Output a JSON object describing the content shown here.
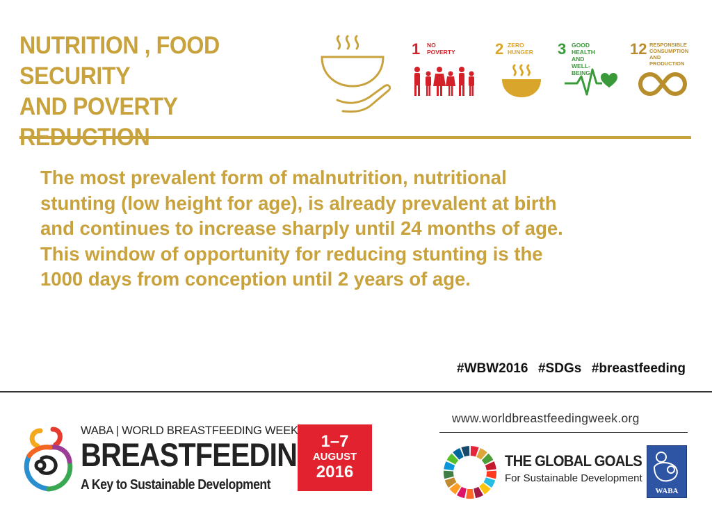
{
  "header": {
    "title_line1": "NUTRITION , FOOD SECURITY",
    "title_line2": "AND POVERTY REDUCTION"
  },
  "sdgs": [
    {
      "number": "1",
      "label_line1": "NO",
      "label_line2": "POVERTY",
      "color": "#e5243b"
    },
    {
      "number": "2",
      "label_line1": "ZERO",
      "label_line2": "HUNGER",
      "color": "#dda63a"
    },
    {
      "number": "3",
      "label_line1": "GOOD HEALTH",
      "label_line2": "AND WELL-BEING",
      "color": "#4c9f38"
    },
    {
      "number": "12",
      "label_line1": "RESPONSIBLE",
      "label_line2": "CONSUMPTION",
      "label_line3": "AND PRODUCTION",
      "color": "#bf8b2e"
    }
  ],
  "body": {
    "line1": "The most prevalent form of malnutrition, nutritional",
    "line2": "stunting (low height for age), is already prevalent at birth",
    "line3": "and continues to increase sharply until 24 months of age.",
    "line4": "This window of opportunity for reducing stunting is the",
    "line5": "1000 days from conception until 2 years of age."
  },
  "hashtags": "#WBW2016  #SDGs  #breastfeeding",
  "footer": {
    "wbw_header": "WABA | WORLD BREASTFEEDING WEEK",
    "wbw_title": "BREASTFEEDING",
    "wbw_subtitle": "A Key to Sustainable Development",
    "date_line1": "1–7",
    "date_line2": "AUGUST",
    "date_line3": "2016",
    "website": "www.worldbreastfeedingweek.org",
    "gg_title": "THE GLOBAL GOALS",
    "gg_subtitle": "For Sustainable Development",
    "waba_logo_text": "WABA"
  },
  "colors": {
    "gold": "#c8a23c",
    "red": "#e2232f",
    "waba_blue": "#2e55a4"
  }
}
